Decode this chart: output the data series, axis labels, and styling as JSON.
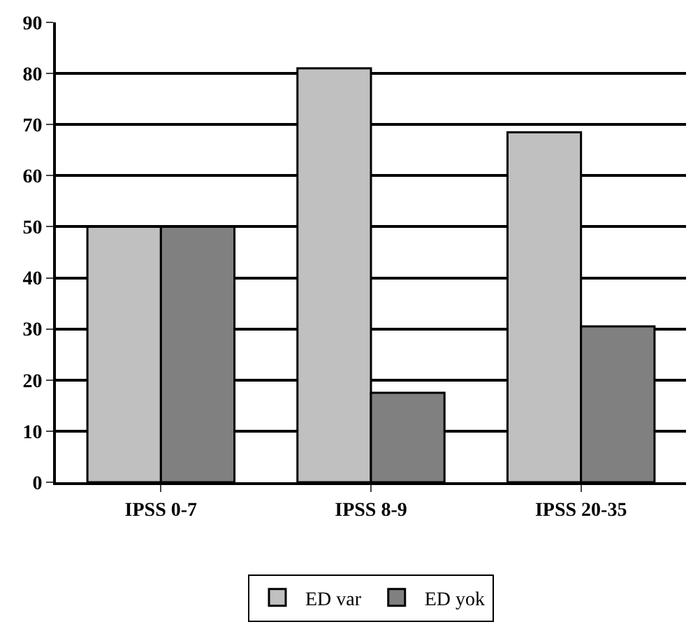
{
  "chart_data": {
    "type": "bar",
    "categories": [
      "IPSS 0-7",
      "IPSS 8-9",
      "IPSS 20-35"
    ],
    "series": [
      {
        "name": "ED var",
        "color": "#c0c0c0",
        "values": [
          50,
          81,
          68.5
        ]
      },
      {
        "name": "ED yok",
        "color": "#808080",
        "values": [
          50,
          17.5,
          30.5
        ]
      }
    ],
    "ylim": [
      0,
      90
    ],
    "yticks": [
      0,
      10,
      20,
      30,
      40,
      50,
      60,
      70,
      80,
      90
    ],
    "grid": "y",
    "legend": "bottom"
  }
}
